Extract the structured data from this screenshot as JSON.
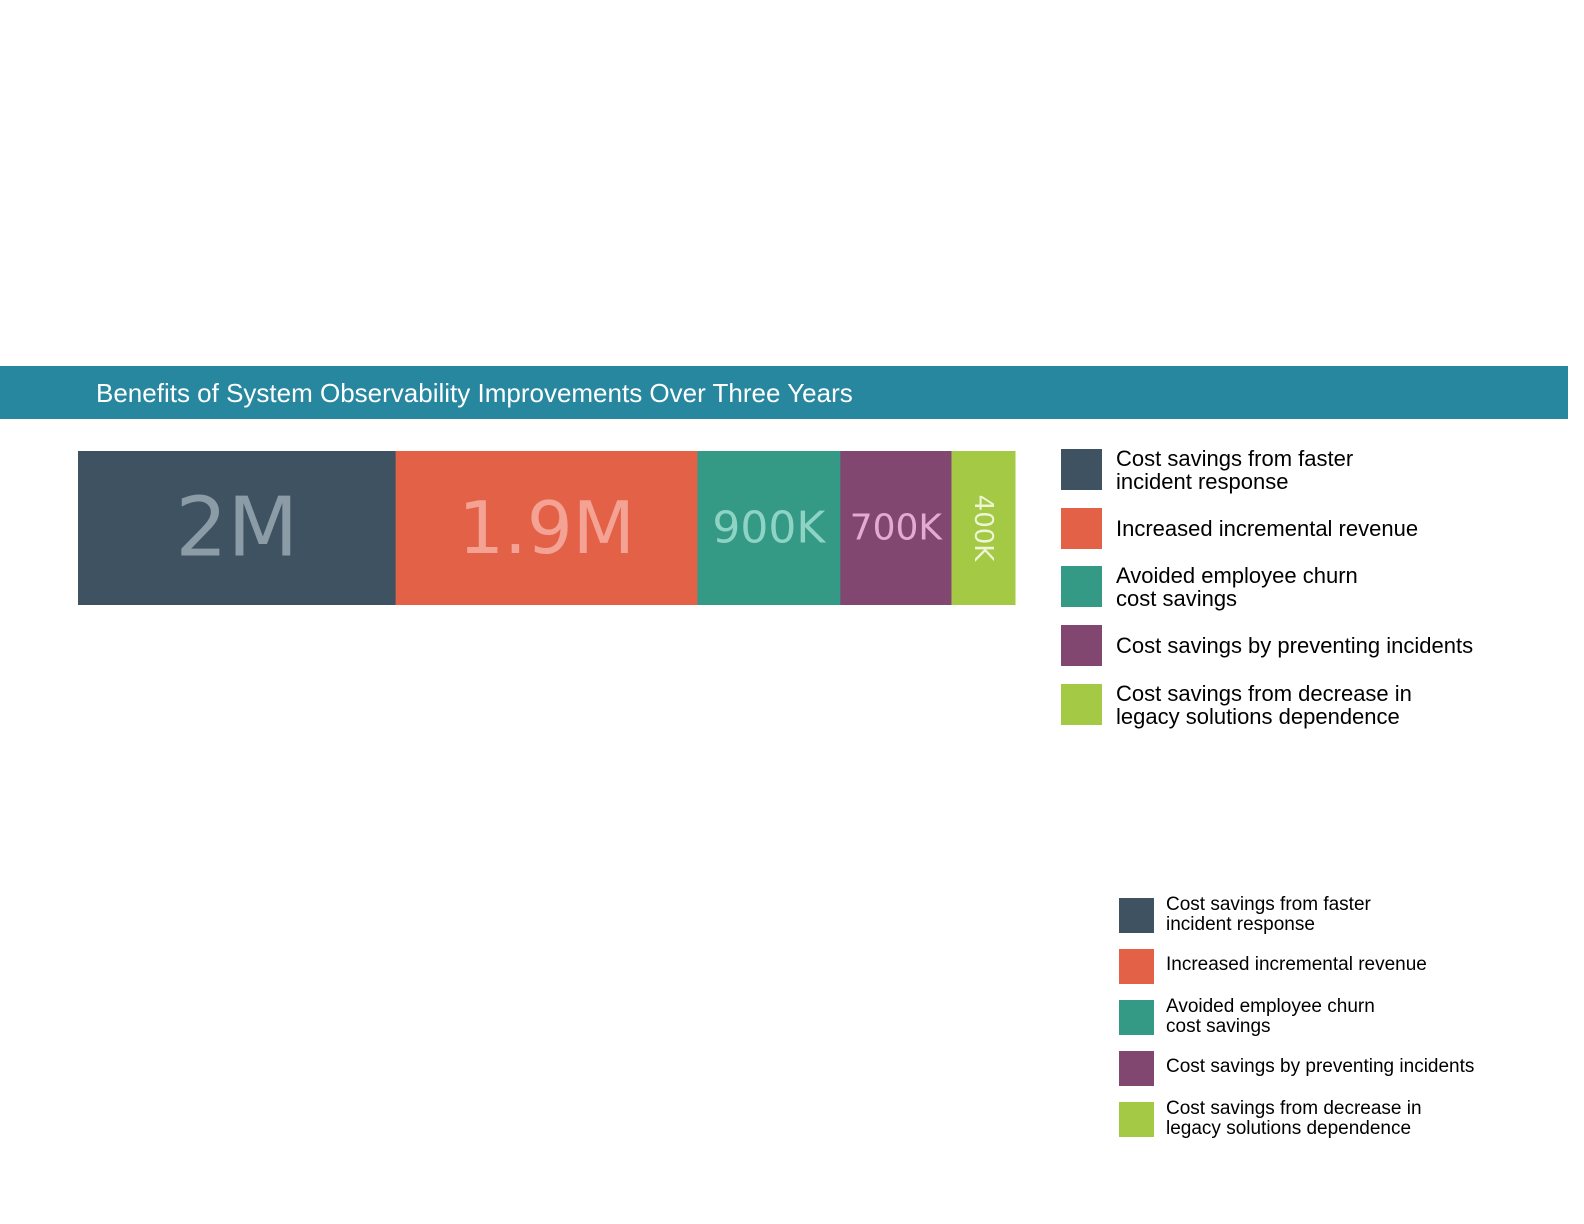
{
  "chart_data": {
    "type": "bar",
    "orientation": "horizontal-stacked",
    "title": "Benefits of System Observability Improvements Over Three Years",
    "categories": [
      "Cost savings from faster\nincident response",
      "Increased incremental revenue",
      "Avoided employee churn\ncost savings",
      "Cost savings by preventing incidents",
      "Cost savings from decrease in\nlegacy solutions dependence"
    ],
    "values": [
      2000000,
      1900000,
      900000,
      700000,
      400000
    ],
    "data_labels": [
      "2M",
      "1.9M",
      "900K",
      "700K",
      "400K"
    ],
    "colors": [
      "#3f5261",
      "#e36247",
      "#349a86",
      "#824771",
      "#a3c945"
    ],
    "label_colors": [
      "#8c9ca6",
      "#f3a293",
      "#8fd3c5",
      "#e3aad4",
      "#eef4d4"
    ],
    "grid": false,
    "legend_placement": "right"
  },
  "header": {
    "title": "Benefits of System Observability Improvements Over Three Years"
  },
  "legend_main": {
    "items": [
      {
        "label": "Cost savings from faster\nincident response",
        "color": "#3f5261"
      },
      {
        "label": "Increased incremental revenue",
        "color": "#e36247"
      },
      {
        "label": "Avoided employee churn\ncost savings",
        "color": "#349a86"
      },
      {
        "label": "Cost savings by preventing incidents",
        "color": "#824771"
      },
      {
        "label": "Cost savings from decrease in\nlegacy solutions dependence",
        "color": "#a3c945"
      }
    ]
  },
  "legend_small": {
    "items": [
      {
        "label": "Cost savings from faster\nincident response",
        "color": "#3f5261"
      },
      {
        "label": "Increased incremental revenue",
        "color": "#e36247"
      },
      {
        "label": "Avoided employee churn\ncost savings",
        "color": "#349a86"
      },
      {
        "label": "Cost savings by preventing incidents",
        "color": "#824771"
      },
      {
        "label": "Cost savings from decrease in\nlegacy solutions dependence",
        "color": "#a3c945"
      }
    ]
  }
}
